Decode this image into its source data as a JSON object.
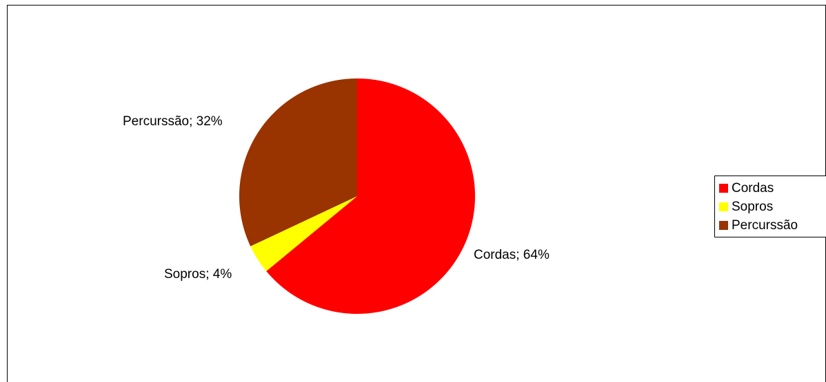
{
  "chart_data": {
    "type": "pie",
    "title": "",
    "categories": [
      "Cordas",
      "Sopros",
      "Percurssão"
    ],
    "values": [
      64,
      4,
      32
    ],
    "unit": "%",
    "colors": [
      "#ff0000",
      "#ffff00",
      "#993300"
    ],
    "data_labels": [
      "Cordas; 64%",
      "Sopros; 4%",
      "Percurssão; 32%"
    ],
    "start_angle": "12 o'clock",
    "direction": "clockwise",
    "legend": {
      "position": "right",
      "items": [
        {
          "label": "Cordas",
          "color": "#ff0000"
        },
        {
          "label": "Sopros",
          "color": "#ffff00"
        },
        {
          "label": "Percurssão",
          "color": "#993300"
        }
      ]
    }
  }
}
